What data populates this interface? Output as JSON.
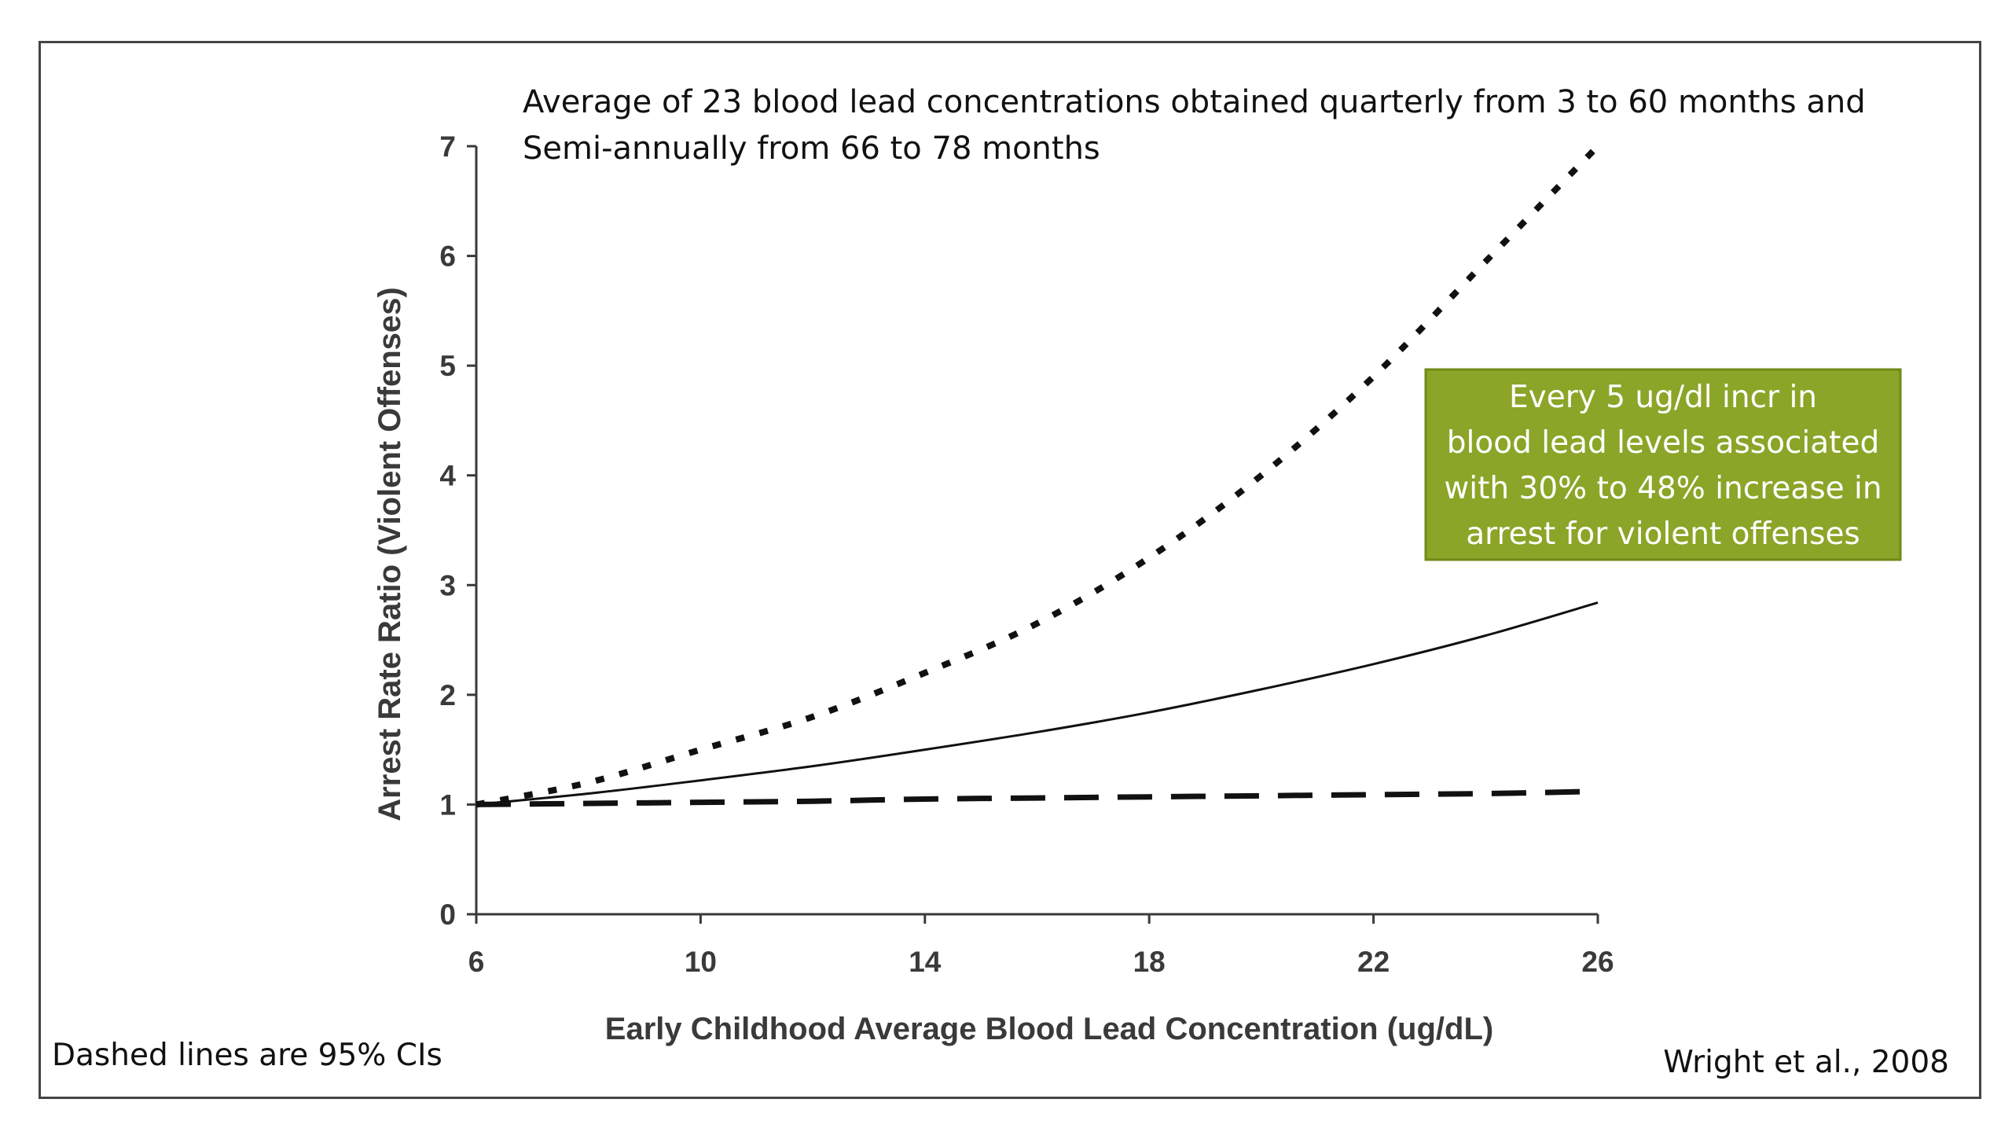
{
  "chart_data": {
    "type": "line",
    "title_lines": [
      "Average of 23 blood lead concentrations obtained quarterly from 3 to 60 months and",
      "Semi-annually from 66 to 78 months"
    ],
    "xlabel": "Early Childhood Average Blood Lead Concentration (ug/dL)",
    "ylabel": "Arrest Rate Ratio (Violent Offenses)",
    "xlim": [
      6,
      26
    ],
    "ylim": [
      0,
      7
    ],
    "x_ticks": [
      6,
      10,
      14,
      18,
      22,
      26
    ],
    "y_ticks": [
      0,
      1,
      2,
      3,
      4,
      5,
      6,
      7
    ],
    "grid": false,
    "x": [
      6,
      8,
      10,
      12,
      14,
      16,
      18,
      20,
      22,
      24,
      26
    ],
    "series": [
      {
        "style": "solid",
        "values": [
          1.0,
          1.1,
          1.22,
          1.35,
          1.5,
          1.66,
          1.84,
          2.05,
          2.28,
          2.54,
          2.84
        ]
      },
      {
        "style": "dotted",
        "values": [
          1.0,
          1.2,
          1.5,
          1.8,
          2.2,
          2.65,
          3.25,
          4.0,
          4.9,
          5.95,
          7.1
        ]
      },
      {
        "style": "dashed",
        "values": [
          1.0,
          1.01,
          1.02,
          1.03,
          1.05,
          1.06,
          1.07,
          1.08,
          1.09,
          1.1,
          1.12
        ]
      }
    ],
    "annotations": {
      "callout_lines": [
        "Every 5 ug/dl incr in",
        "blood lead levels associated",
        "with  30% to 48% increase in",
        "arrest for violent offenses"
      ],
      "footnote_left": "Dashed lines are 95% CIs",
      "citation_right": "Wright et al., 2008"
    }
  },
  "colors": {
    "line": "#111111",
    "axis": "#3a3a3a",
    "callout_fill": "#8aa527",
    "callout_border": "#6f8a17",
    "frame": "#444444"
  }
}
